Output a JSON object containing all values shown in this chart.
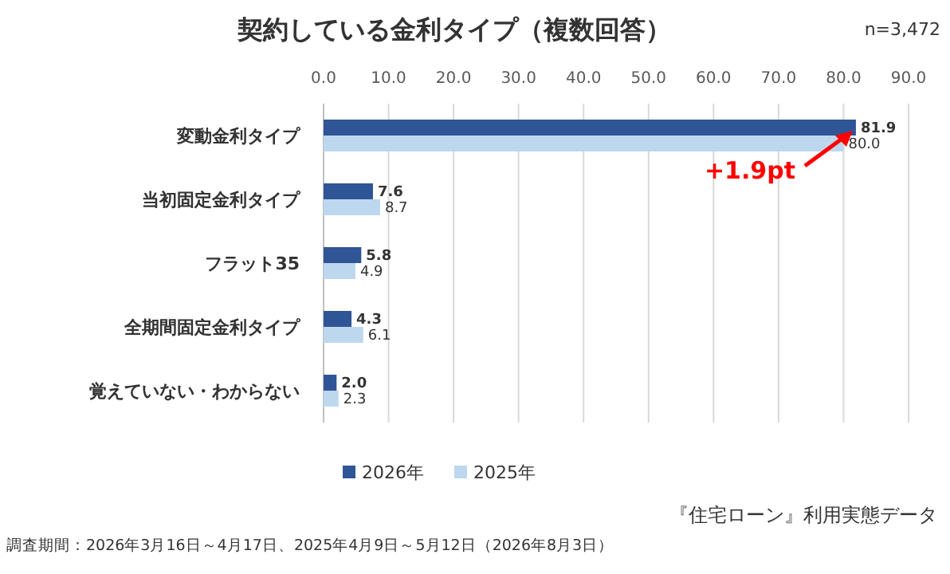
{
  "chart_data": {
    "type": "bar",
    "orientation": "horizontal",
    "title": "契約している金利タイプ（複数回答）",
    "categories": [
      "変動金利タイプ",
      "当初固定金利タイプ",
      "フラット35",
      "全期間固定金利タイプ",
      "覚えていない・わからない"
    ],
    "series": [
      {
        "name": "2026年",
        "color": "#2f5597",
        "values": [
          81.9,
          7.6,
          5.8,
          4.3,
          2.0
        ],
        "value_labels": [
          "81.9",
          "7.6",
          "5.8",
          "4.3",
          "2.0"
        ]
      },
      {
        "name": "2025年",
        "color": "#bdd7ee",
        "values": [
          80.0,
          8.7,
          4.9,
          6.1,
          2.3
        ],
        "value_labels": [
          "80.0",
          "8.7",
          "4.9",
          "6.1",
          "2.3"
        ]
      }
    ],
    "xlim": [
      0,
      90
    ],
    "xticks": [
      {
        "value": 0,
        "label": "0.0"
      },
      {
        "value": 10,
        "label": "10.0"
      },
      {
        "value": 20,
        "label": "20.0"
      },
      {
        "value": 30,
        "label": "30.0"
      },
      {
        "value": 40,
        "label": "40.0"
      },
      {
        "value": 50,
        "label": "50.0"
      },
      {
        "value": 60,
        "label": "60.0"
      },
      {
        "value": 70,
        "label": "70.0"
      },
      {
        "value": 80,
        "label": "80.0"
      },
      {
        "value": 90,
        "label": "90.0"
      }
    ],
    "grid": "x",
    "legend": "bottom",
    "annotations": [
      "n=3,472",
      {
        "text": "+1.9pt",
        "x": 81.9,
        "y": "変動金利タイプ"
      },
      "『住宅ローン』利用実態データ",
      "調査期間：2026年3月16日～4月17日、2025年4月9日～5月12日（2026年8月3日）"
    ]
  }
}
